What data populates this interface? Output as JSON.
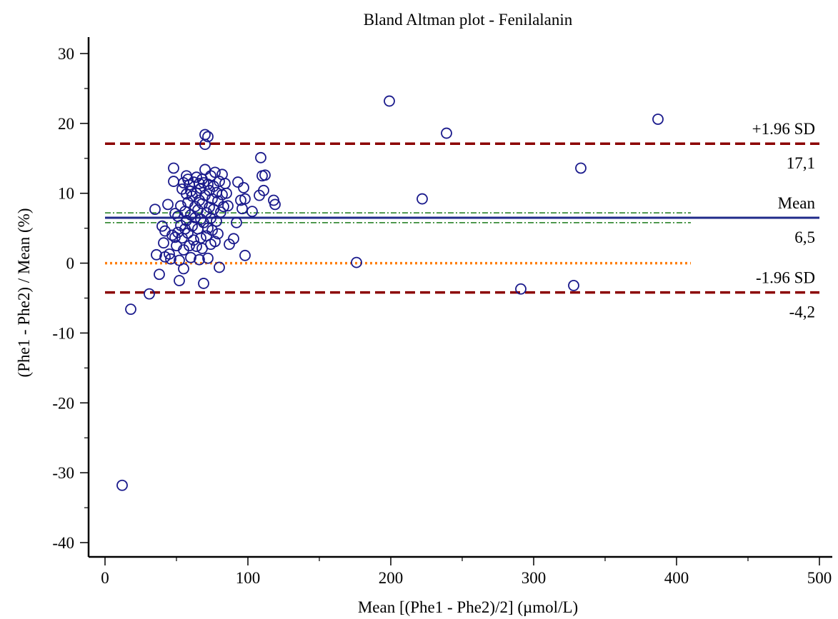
{
  "chart_data": {
    "type": "scatter",
    "title": "Bland Altman plot - Fenilalanin",
    "xlabel": "Mean [(Phe1 - Phe2)/2] (µmol/L)",
    "ylabel": "(Phe1 - Phe2) / Mean (%)",
    "xlim": [
      0,
      500
    ],
    "ylim": [
      -40,
      30
    ],
    "xticks": [
      0,
      100,
      200,
      300,
      400,
      500
    ],
    "yticks": [
      -40,
      -30,
      -20,
      -10,
      0,
      10,
      20,
      30
    ],
    "grid": false,
    "point_color": "#1a1a8c",
    "reference_lines": [
      {
        "kind": "upper-loa",
        "value": 17.1,
        "label": "+1.96 SD",
        "value_label": "17,1",
        "color": "#8b0000",
        "style": "dashed"
      },
      {
        "kind": "mean",
        "value": 6.5,
        "label": "Mean",
        "value_label": "6,5",
        "color": "#1f2a8a",
        "style": "solid"
      },
      {
        "kind": "lower-loa",
        "value": -4.2,
        "label": "-1.96 SD",
        "value_label": "-4,2",
        "color": "#8b0000",
        "style": "dashed"
      },
      {
        "kind": "zero",
        "value": 0,
        "x_end": 410,
        "color": "#ff7f0e",
        "style": "dotted"
      },
      {
        "kind": "mean-ci-upper",
        "value": 7.2,
        "x_end": 410,
        "color": "#1a7a1a",
        "style": "dashdot"
      },
      {
        "kind": "mean-ci-lower",
        "value": 5.8,
        "x_end": 410,
        "color": "#1a7a1a",
        "style": "dashdot"
      }
    ],
    "points": [
      [
        12,
        -31.8
      ],
      [
        18,
        -6.6
      ],
      [
        31,
        -4.4
      ],
      [
        35,
        7.7
      ],
      [
        36,
        1.2
      ],
      [
        38,
        -1.6
      ],
      [
        40,
        5.3
      ],
      [
        41,
        2.9
      ],
      [
        42,
        4.6
      ],
      [
        42,
        0.9
      ],
      [
        44,
        8.4
      ],
      [
        45,
        1.3
      ],
      [
        46,
        0.6
      ],
      [
        47,
        4.0
      ],
      [
        48,
        13.6
      ],
      [
        48,
        11.7
      ],
      [
        49,
        7.1
      ],
      [
        49,
        3.7
      ],
      [
        50,
        2.5
      ],
      [
        51,
        6.7
      ],
      [
        51,
        4.4
      ],
      [
        52,
        -2.5
      ],
      [
        52,
        0.4
      ],
      [
        53,
        8.2
      ],
      [
        53,
        5.4
      ],
      [
        54,
        10.6
      ],
      [
        54,
        3.6
      ],
      [
        55,
        11.5
      ],
      [
        55,
        1.9
      ],
      [
        55,
        -0.8
      ],
      [
        56,
        7.4
      ],
      [
        56,
        4.9
      ],
      [
        57,
        12.5
      ],
      [
        57,
        9.9
      ],
      [
        57,
        6.1
      ],
      [
        58,
        12.0
      ],
      [
        58,
        8.7
      ],
      [
        58,
        4.3
      ],
      [
        59,
        11.2
      ],
      [
        59,
        2.5
      ],
      [
        60,
        10.3
      ],
      [
        60,
        6.9
      ],
      [
        60,
        0.8
      ],
      [
        61,
        9.6
      ],
      [
        61,
        5.3
      ],
      [
        62,
        11.6
      ],
      [
        62,
        3.3
      ],
      [
        63,
        8.1
      ],
      [
        63,
        6.5
      ],
      [
        64,
        12.3
      ],
      [
        64,
        10.0
      ],
      [
        64,
        2.4
      ],
      [
        65,
        7.6
      ],
      [
        65,
        4.9
      ],
      [
        66,
        11.4
      ],
      [
        66,
        9.0
      ],
      [
        66,
        0.5
      ],
      [
        67,
        10.7
      ],
      [
        67,
        6.3
      ],
      [
        67,
        3.6
      ],
      [
        68,
        12.0
      ],
      [
        68,
        8.5
      ],
      [
        68,
        2.1
      ],
      [
        69,
        11.5
      ],
      [
        69,
        5.8
      ],
      [
        69,
        -2.9
      ],
      [
        70,
        18.4
      ],
      [
        70,
        17.0
      ],
      [
        70,
        13.4
      ],
      [
        70,
        9.7
      ],
      [
        71,
        7.2
      ],
      [
        71,
        3.9
      ],
      [
        72,
        18.1
      ],
      [
        72,
        11.3
      ],
      [
        72,
        5.0
      ],
      [
        72,
        0.7
      ],
      [
        73,
        10.4
      ],
      [
        73,
        8.0
      ],
      [
        74,
        12.5
      ],
      [
        74,
        6.4
      ],
      [
        74,
        2.7
      ],
      [
        75,
        9.2
      ],
      [
        75,
        4.7
      ],
      [
        76,
        11.0
      ],
      [
        76,
        7.7
      ],
      [
        77,
        13.0
      ],
      [
        77,
        3.1
      ],
      [
        78,
        10.1
      ],
      [
        78,
        6.0
      ],
      [
        79,
        8.9
      ],
      [
        79,
        4.2
      ],
      [
        80,
        11.7
      ],
      [
        80,
        -0.6
      ],
      [
        81,
        7.3
      ],
      [
        82,
        12.7
      ],
      [
        82,
        9.8
      ],
      [
        83,
        8.1
      ],
      [
        84,
        11.4
      ],
      [
        85,
        10.0
      ],
      [
        86,
        8.2
      ],
      [
        87,
        2.7
      ],
      [
        90,
        3.5
      ],
      [
        92,
        5.8
      ],
      [
        93,
        11.6
      ],
      [
        95,
        9.0
      ],
      [
        96,
        7.8
      ],
      [
        97,
        10.8
      ],
      [
        98,
        1.1
      ],
      [
        98,
        9.2
      ],
      [
        103,
        7.4
      ],
      [
        108,
        9.7
      ],
      [
        109,
        15.1
      ],
      [
        110,
        12.5
      ],
      [
        111,
        10.4
      ],
      [
        112,
        12.6
      ],
      [
        118,
        9.0
      ],
      [
        119,
        8.4
      ],
      [
        176,
        0.1
      ],
      [
        199,
        23.2
      ],
      [
        222,
        9.2
      ],
      [
        239,
        18.6
      ],
      [
        291,
        -3.7
      ],
      [
        328,
        -3.2
      ],
      [
        333,
        13.6
      ],
      [
        387,
        20.6
      ]
    ]
  }
}
